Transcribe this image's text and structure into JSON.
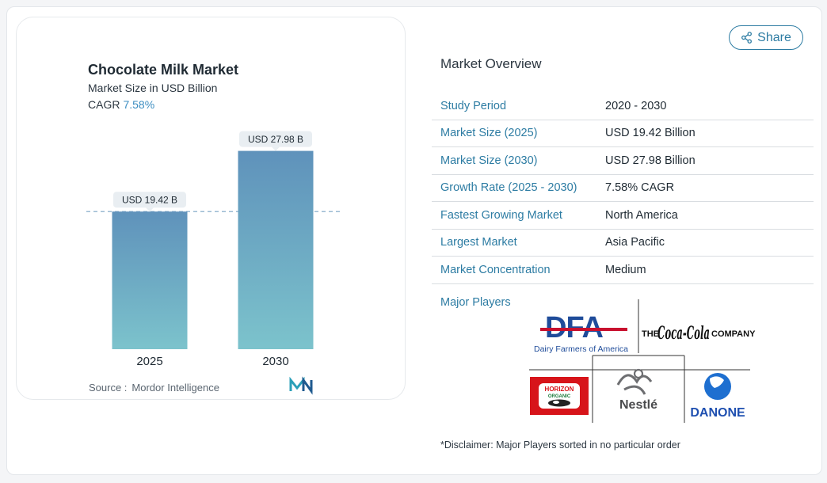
{
  "chart": {
    "title": "Chocolate Milk Market",
    "subtitle": "Market Size in USD Billion",
    "cagr_label": "CAGR",
    "cagr_value": "7.58%",
    "source_label": "Source :",
    "source_value": "Mordor Intelligence",
    "logo_icon": "mordor-intelligence-logo"
  },
  "chart_data": {
    "type": "bar",
    "categories": [
      "2025",
      "2030"
    ],
    "values": [
      19.42,
      27.98
    ],
    "data_labels": [
      "USD 19.42 B",
      "USD 27.98 B"
    ],
    "reference_line": 19.42,
    "title": "Chocolate Milk Market",
    "ylabel": "",
    "xlabel": "",
    "bar_color_top": "#5f92bb",
    "bar_color_bottom": "#7cc3cc",
    "grid": false
  },
  "share": {
    "label": "Share",
    "icon": "share-icon",
    "color": "#2d7ca3"
  },
  "overview": {
    "title": "Market Overview",
    "rows": [
      {
        "key": "Study Period",
        "value": "2020 - 2030"
      },
      {
        "key": "Market Size (2025)",
        "value": "USD 19.42 Billion"
      },
      {
        "key": "Market Size (2030)",
        "value": "USD 27.98 Billion"
      },
      {
        "key": "Growth Rate (2025 - 2030)",
        "value": "7.58% CAGR"
      },
      {
        "key": "Fastest Growing Market",
        "value": "North America"
      },
      {
        "key": "Largest Market",
        "value": "Asia Pacific"
      },
      {
        "key": "Market Concentration",
        "value": "Medium"
      }
    ]
  },
  "players": {
    "label": "Major Players",
    "logos": [
      {
        "name": "dfa",
        "text": "DFA",
        "caption": "Dairy Farmers of America"
      },
      {
        "name": "coca-cola",
        "pre": "THE",
        "script": "Coca-Cola",
        "post": "COMPANY"
      },
      {
        "name": "horizon",
        "text": "HORIZON",
        "sub": "ORGANIC"
      },
      {
        "name": "nestle",
        "text": "Nestlé"
      },
      {
        "name": "danone",
        "text": "DANONE"
      }
    ],
    "disclaimer": "*Disclaimer: Major Players sorted in no particular order"
  }
}
